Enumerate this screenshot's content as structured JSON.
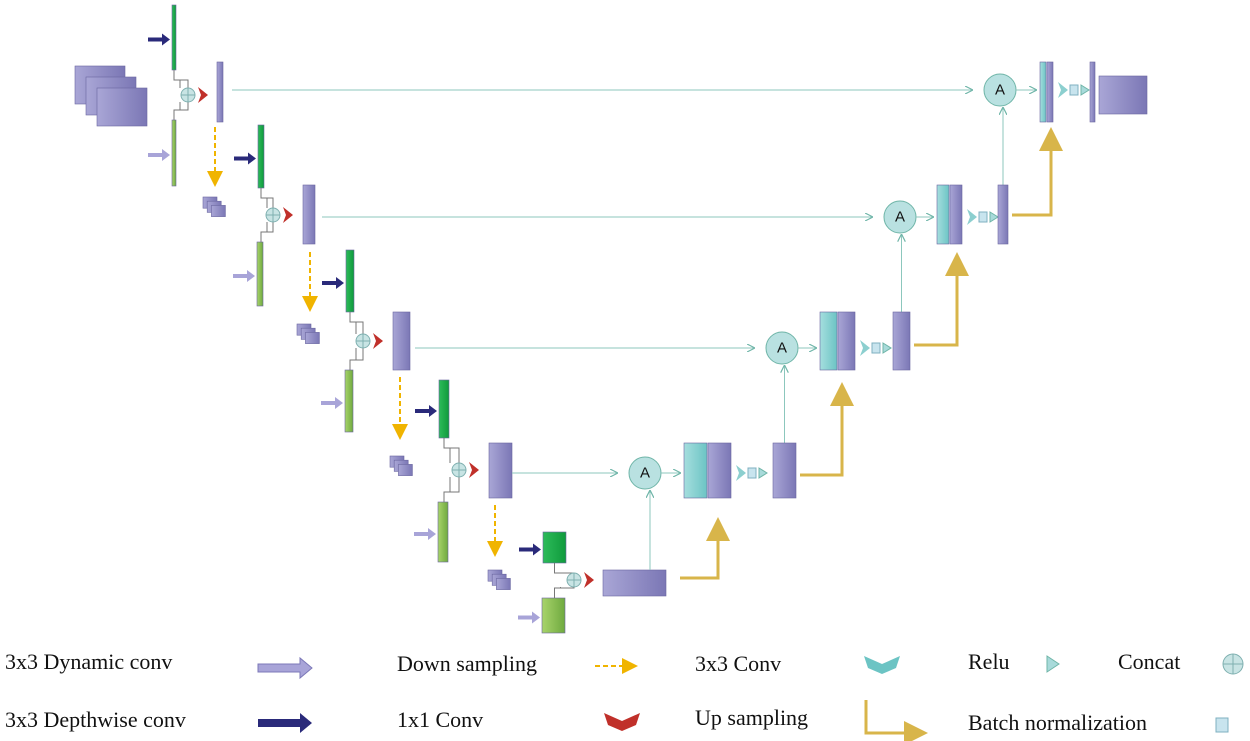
{
  "attention_nodes": [
    "A",
    "A",
    "A",
    "A"
  ],
  "legend": [
    {
      "label": "3x3 Dynamic conv"
    },
    {
      "label": "Down sampling"
    },
    {
      "label": "3x3 Conv"
    },
    {
      "label": "Relu"
    },
    {
      "label": "Concat"
    },
    {
      "label": "3x3 Depthwise conv"
    },
    {
      "label": "1x1 Conv"
    },
    {
      "label": "Up sampling"
    },
    {
      "label": "Batch normalization"
    }
  ]
}
